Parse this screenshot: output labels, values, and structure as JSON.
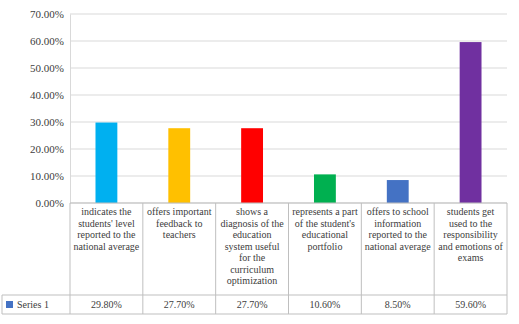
{
  "chart_data": {
    "type": "bar",
    "categories": [
      "indicates the students' level reported to the national average",
      "offers important feedback to teachers",
      "shows a diagnosis of the education system useful for the curriculum optimization",
      "represents a part of the student's educational portfolio",
      "offers to school information reported to the national average",
      "students get used to the responsibility and emotions of exams"
    ],
    "series": [
      {
        "name": "Series 1",
        "color": "#4472c4",
        "colors": [
          "#00b0f0",
          "#ffc000",
          "#ff0000",
          "#00b050",
          "#4472c4",
          "#7030a0"
        ],
        "values": [
          29.8,
          27.7,
          27.7,
          10.6,
          8.5,
          59.6
        ],
        "value_labels": [
          "29.80%",
          "27.70%",
          "27.70%",
          "10.60%",
          "8.50%",
          "59.60%"
        ]
      }
    ],
    "ylim": [
      0,
      70
    ],
    "yticks": [
      {
        "value": 0,
        "label": "0.00%"
      },
      {
        "value": 10,
        "label": "10.00%"
      },
      {
        "value": 20,
        "label": "20.00%"
      },
      {
        "value": 30,
        "label": "30.00%"
      },
      {
        "value": 40,
        "label": "40.00%"
      },
      {
        "value": 50,
        "label": "50.00%"
      },
      {
        "value": 60,
        "label": "60.00%"
      },
      {
        "value": 70,
        "label": "70.00%"
      }
    ],
    "grid": true,
    "data_labels": true,
    "legend": "bottom"
  }
}
